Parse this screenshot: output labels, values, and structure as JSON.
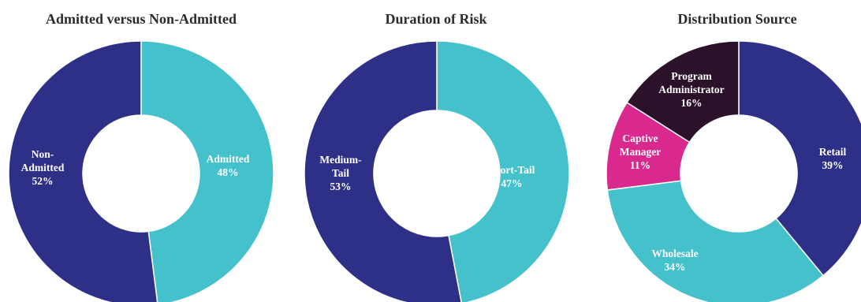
{
  "chart_data": [
    {
      "type": "pie",
      "title": "Admitted versus Non-Admitted",
      "slices": [
        {
          "label": "Admitted",
          "value": 48,
          "value_label": "48%",
          "color": "#45C1CB"
        },
        {
          "label": "Non-Admitted",
          "value": 52,
          "value_label": "52%",
          "color": "#2E2F86"
        }
      ]
    },
    {
      "type": "pie",
      "title": "Duration of Risk",
      "slices": [
        {
          "label": "Short-Tail",
          "value": 47,
          "value_label": "47%",
          "color": "#45C1CB"
        },
        {
          "label": "Medium-Tail",
          "value": 53,
          "value_label": "53%",
          "color": "#2E2F86"
        }
      ]
    },
    {
      "type": "pie",
      "title": "Distribution Source",
      "slices": [
        {
          "label": "Retail",
          "value": 39,
          "value_label": "39%",
          "color": "#2E2F86"
        },
        {
          "label": "Wholesale",
          "value": 34,
          "value_label": "34%",
          "color": "#45C1CB"
        },
        {
          "label": "Captive Manager",
          "value": 11,
          "value_label": "11%",
          "color": "#D9288E"
        },
        {
          "label": "Program Administrator",
          "value": 16,
          "value_label": "16%",
          "color": "#2B1129"
        }
      ]
    }
  ]
}
